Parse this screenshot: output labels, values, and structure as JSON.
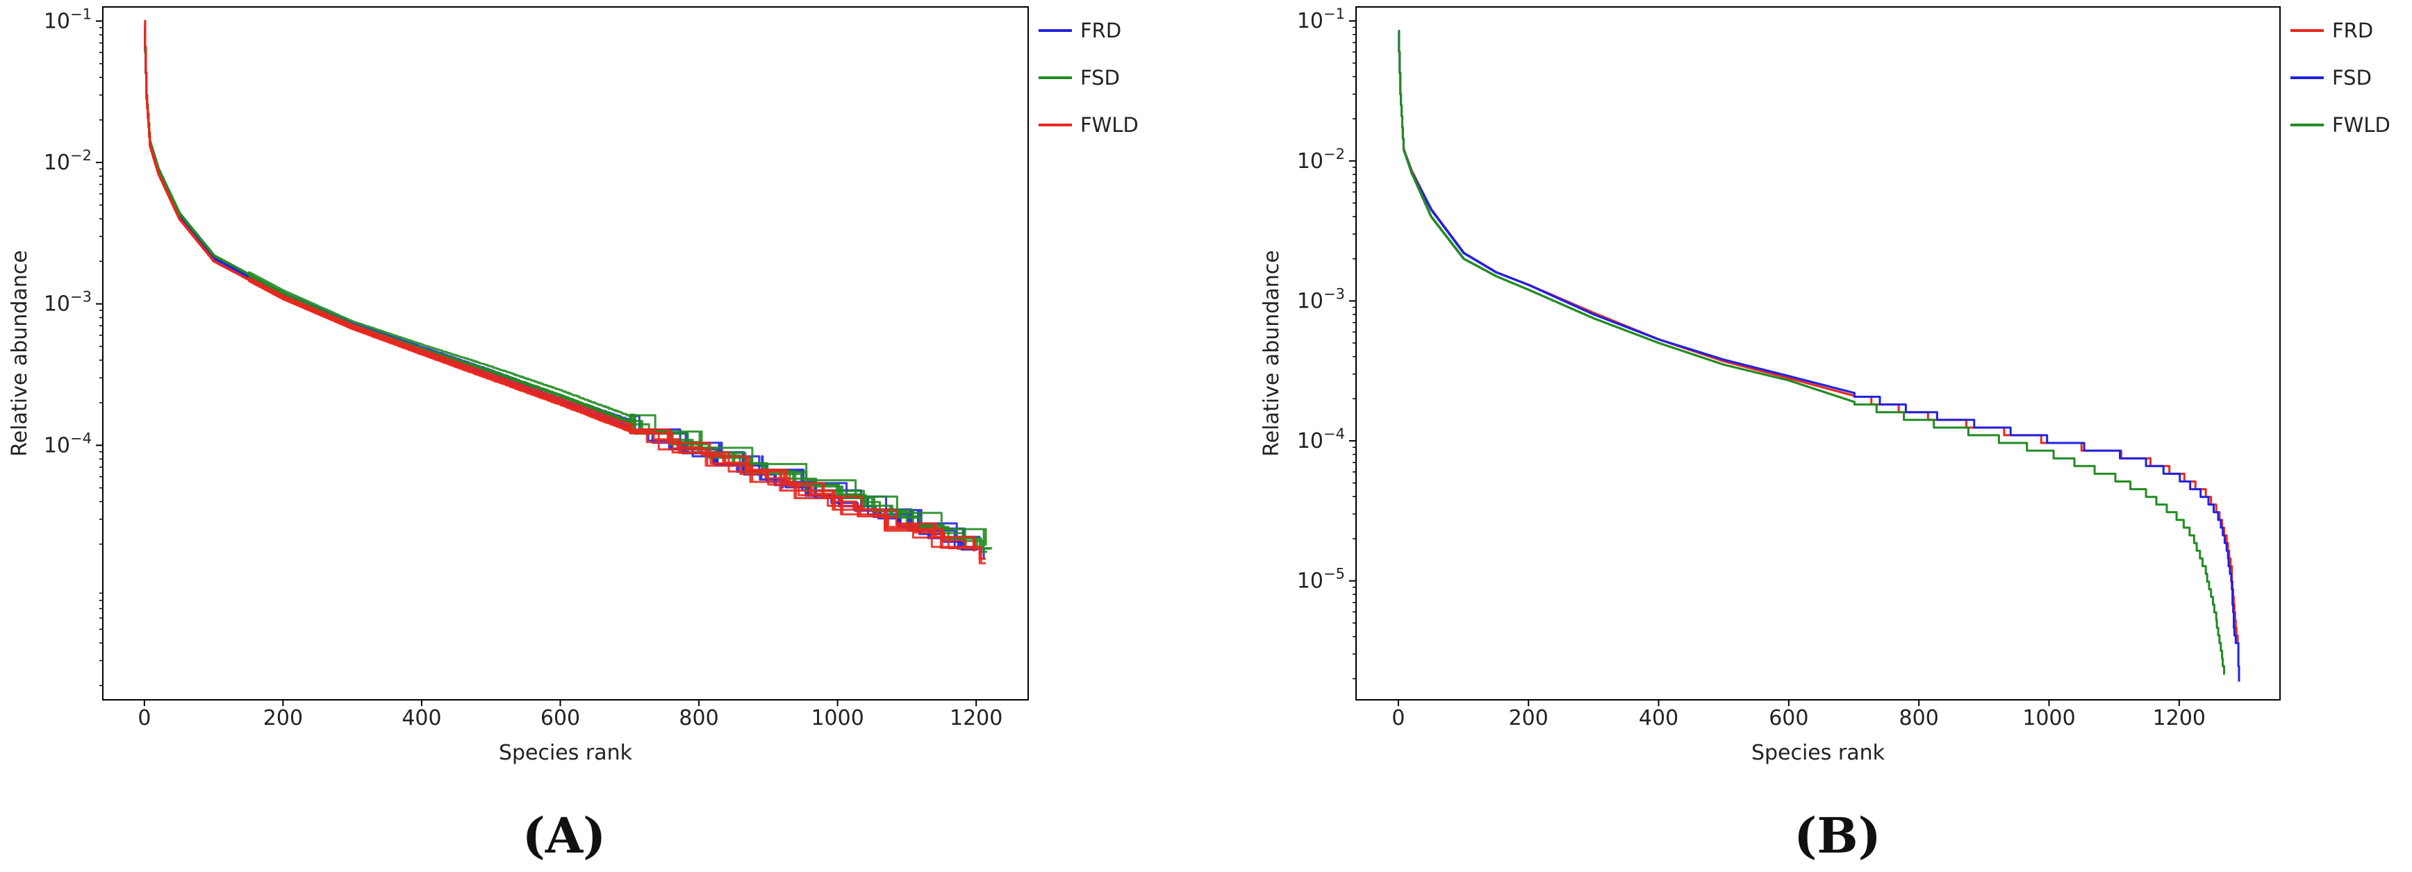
{
  "chart_data": [
    {
      "type": "line",
      "panel_label": "(A)",
      "xlabel": "Species rank",
      "ylabel": "Relative abundance",
      "xlim": [
        -60,
        1275
      ],
      "ylim_log10": [
        -5.8,
        -0.9
      ],
      "yscale": "log",
      "x_ticks": [
        0,
        200,
        400,
        600,
        800,
        1000,
        1200
      ],
      "y_ticks": [
        {
          "exp": -4,
          "base": "10",
          "sup": "−4"
        },
        {
          "exp": -3,
          "base": "10",
          "sup": "−3"
        },
        {
          "exp": -2,
          "base": "10",
          "sup": "−2"
        },
        {
          "exp": -1,
          "base": "10",
          "sup": "−1"
        }
      ],
      "legend_position": "outside-right-top",
      "replicates_per_series": 5,
      "series": [
        {
          "name": "FRD",
          "color": "#2222dd",
          "end_rank": 1220,
          "points": [
            [
              0,
              0.09
            ],
            [
              3,
              0.03
            ],
            [
              8,
              0.0135
            ],
            [
              20,
              0.0085
            ],
            [
              50,
              0.0042
            ],
            [
              100,
              0.0021
            ],
            [
              200,
              0.00115
            ],
            [
              300,
              0.0007
            ],
            [
              400,
              0.00047
            ],
            [
              500,
              0.00032
            ],
            [
              600,
              0.00021
            ],
            [
              700,
              0.00014
            ],
            [
              800,
              9.5e-05
            ],
            [
              900,
              6.5e-05
            ],
            [
              1000,
              4.5e-05
            ],
            [
              1050,
              3.8e-05
            ],
            [
              1100,
              3e-05
            ],
            [
              1150,
              2.5e-05
            ],
            [
              1220,
              1.8e-05
            ]
          ]
        },
        {
          "name": "FSD",
          "color": "#228b22",
          "end_rank": 1225,
          "points": [
            [
              0,
              0.085
            ],
            [
              3,
              0.03
            ],
            [
              8,
              0.014
            ],
            [
              20,
              0.009
            ],
            [
              50,
              0.0044
            ],
            [
              100,
              0.0022
            ],
            [
              200,
              0.0012
            ],
            [
              300,
              0.00072
            ],
            [
              400,
              0.00049
            ],
            [
              500,
              0.00034
            ],
            [
              600,
              0.00023
            ],
            [
              700,
              0.00015
            ],
            [
              800,
              0.0001
            ],
            [
              900,
              7e-05
            ],
            [
              1000,
              5e-05
            ],
            [
              1050,
              4e-05
            ],
            [
              1100,
              3.2e-05
            ],
            [
              1150,
              2.6e-05
            ],
            [
              1225,
              1.9e-05
            ]
          ]
        },
        {
          "name": "FWLD",
          "color": "#e8281e",
          "end_rank": 1215,
          "points": [
            [
              0,
              0.1
            ],
            [
              3,
              0.028
            ],
            [
              8,
              0.013
            ],
            [
              20,
              0.0083
            ],
            [
              50,
              0.004
            ],
            [
              100,
              0.002
            ],
            [
              200,
              0.0011
            ],
            [
              300,
              0.00068
            ],
            [
              400,
              0.00045
            ],
            [
              500,
              0.0003
            ],
            [
              600,
              0.0002
            ],
            [
              700,
              0.00013
            ],
            [
              800,
              9e-05
            ],
            [
              900,
              6e-05
            ],
            [
              1000,
              4e-05
            ],
            [
              1050,
              3.3e-05
            ],
            [
              1100,
              2.6e-05
            ],
            [
              1150,
              2.2e-05
            ],
            [
              1215,
              1.7e-05
            ]
          ]
        }
      ]
    },
    {
      "type": "line",
      "panel_label": "(B)",
      "xlabel": "Species rank",
      "ylabel": "Relative abundance",
      "xlim": [
        -65,
        1355
      ],
      "ylim_log10": [
        -5.85,
        -0.9
      ],
      "yscale": "log",
      "x_ticks": [
        0,
        200,
        400,
        600,
        800,
        1000,
        1200
      ],
      "y_ticks": [
        {
          "exp": -5,
          "base": "10",
          "sup": "−5"
        },
        {
          "exp": -4,
          "base": "10",
          "sup": "−4"
        },
        {
          "exp": -3,
          "base": "10",
          "sup": "−3"
        },
        {
          "exp": -2,
          "base": "10",
          "sup": "−2"
        },
        {
          "exp": -1,
          "base": "10",
          "sup": "−1"
        }
      ],
      "legend_position": "outside-right-top",
      "series": [
        {
          "name": "FRD",
          "color": "#e8281e",
          "points": [
            [
              0,
              0.085
            ],
            [
              3,
              0.03
            ],
            [
              8,
              0.012
            ],
            [
              20,
              0.0085
            ],
            [
              50,
              0.0045
            ],
            [
              100,
              0.0022
            ],
            [
              150,
              0.0016
            ],
            [
              200,
              0.0013
            ],
            [
              300,
              0.00082
            ],
            [
              400,
              0.00053
            ],
            [
              500,
              0.00037
            ],
            [
              600,
              0.00028
            ],
            [
              700,
              0.00021
            ],
            [
              800,
              0.000155
            ],
            [
              900,
              0.000125
            ],
            [
              1000,
              0.0001
            ],
            [
              1100,
              8.2e-05
            ],
            [
              1150,
              7.2e-05
            ],
            [
              1200,
              5.8e-05
            ],
            [
              1240,
              4.3e-05
            ],
            [
              1260,
              3.1e-05
            ],
            [
              1272,
              2e-05
            ],
            [
              1280,
              1.2e-05
            ],
            [
              1286,
              5e-06
            ],
            [
              1290,
              3.5e-06
            ]
          ]
        },
        {
          "name": "FSD",
          "color": "#2222dd",
          "points": [
            [
              0,
              0.085
            ],
            [
              3,
              0.03
            ],
            [
              8,
              0.012
            ],
            [
              20,
              0.0083
            ],
            [
              50,
              0.0045
            ],
            [
              100,
              0.0022
            ],
            [
              150,
              0.0016
            ],
            [
              200,
              0.0013
            ],
            [
              300,
              0.0008
            ],
            [
              400,
              0.00053
            ],
            [
              500,
              0.00038
            ],
            [
              600,
              0.00029
            ],
            [
              700,
              0.00022
            ],
            [
              800,
              0.00016
            ],
            [
              900,
              0.000128
            ],
            [
              1000,
              0.000102
            ],
            [
              1100,
              8.2e-05
            ],
            [
              1150,
              7e-05
            ],
            [
              1200,
              5.5e-05
            ],
            [
              1240,
              4e-05
            ],
            [
              1260,
              2.9e-05
            ],
            [
              1272,
              1.8e-05
            ],
            [
              1280,
              1e-05
            ],
            [
              1285,
              4e-06
            ],
            [
              1290,
              3.5e-06
            ],
            [
              1292,
              1.8e-06
            ]
          ]
        },
        {
          "name": "FWLD",
          "color": "#228b22",
          "points": [
            [
              0,
              0.085
            ],
            [
              3,
              0.03
            ],
            [
              8,
              0.012
            ],
            [
              20,
              0.0082
            ],
            [
              50,
              0.004
            ],
            [
              100,
              0.002
            ],
            [
              150,
              0.0015
            ],
            [
              200,
              0.0012
            ],
            [
              300,
              0.00075
            ],
            [
              400,
              0.0005
            ],
            [
              500,
              0.00035
            ],
            [
              600,
              0.00027
            ],
            [
              700,
              0.00019
            ],
            [
              800,
              0.00014
            ],
            [
              900,
              0.00011
            ],
            [
              1000,
              8.2e-05
            ],
            [
              1100,
              5.5e-05
            ],
            [
              1150,
              4.2e-05
            ],
            [
              1200,
              2.8e-05
            ],
            [
              1220,
              2.1e-05
            ],
            [
              1240,
              1.2e-05
            ],
            [
              1255,
              6e-06
            ],
            [
              1265,
              3e-06
            ],
            [
              1270,
              2.1e-06
            ]
          ]
        }
      ]
    }
  ]
}
